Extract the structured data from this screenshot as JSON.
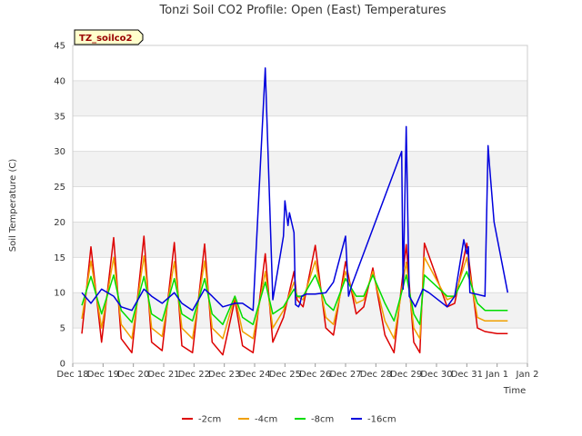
{
  "chart_data": {
    "type": "line",
    "title": "Tonzi Soil CO2 Profile: Open (East) Temperatures",
    "xlabel": "Time",
    "ylabel": "Soil Temperature (C)",
    "badge": "TZ_soilco2",
    "ylim": [
      0,
      45
    ],
    "yticks": [
      0,
      5,
      10,
      15,
      20,
      25,
      30,
      35,
      40,
      45
    ],
    "xlim": [
      "2023-12-18",
      "2024-01-02"
    ],
    "xticks": [
      "Dec 18",
      "Dec 19",
      "Dec 20",
      "Dec 21",
      "Dec 22",
      "Dec 23",
      "Dec 24",
      "Dec 25",
      "Dec 26",
      "Dec 27",
      "Dec 28",
      "Dec 29",
      "Dec 30",
      "Dec 31",
      "Jan 1",
      "Jan 2"
    ],
    "x_dates": [
      "2023-12-18",
      "2023-12-18 12:00",
      "2023-12-19",
      "2023-12-19 12:00",
      "2023-12-20",
      "2023-12-20 12:00",
      "2023-12-21",
      "2023-12-21 12:00",
      "2023-12-22",
      "2023-12-22 12:00",
      "2023-12-23",
      "2023-12-23 12:00",
      "2023-12-24",
      "2023-12-24 12:00",
      "2023-12-25",
      "2023-12-25 12:00",
      "2023-12-26",
      "2023-12-26 12:00",
      "2023-12-27",
      "2023-12-27 12:00",
      "2023-12-28",
      "2023-12-28 12:00",
      "2023-12-29",
      "2023-12-29 12:00",
      "2023-12-30",
      "2023-12-30 12:00",
      "2023-12-31",
      "2023-12-31 12:00",
      "2024-01-01",
      "2024-01-01 12:00"
    ],
    "grid": "horizontal",
    "grid_bands": true,
    "legend": "bottom",
    "series": [
      {
        "name": "-2cm",
        "color": "#dd0000",
        "x": [
          0.3,
          0.6,
          0.95,
          1.35,
          1.6,
          1.95,
          2.35,
          2.6,
          2.95,
          3.35,
          3.6,
          3.95,
          4.35,
          4.6,
          4.95,
          5.35,
          5.6,
          5.95,
          6.35,
          6.6,
          6.95,
          7.3,
          7.4,
          7.6,
          8.0,
          8.35,
          8.6,
          9.0,
          9.35,
          9.6,
          9.9,
          10.3,
          10.6,
          11.0,
          11.25,
          11.45,
          11.6,
          12.35,
          12.6,
          13.0,
          13.35,
          13.6,
          14.0,
          14.35
        ],
        "y": [
          4.2,
          16.5,
          3.0,
          17.8,
          3.5,
          1.5,
          18.0,
          3.0,
          1.8,
          17.1,
          2.5,
          1.5,
          16.9,
          3.0,
          1.2,
          9.0,
          2.5,
          1.5,
          15.5,
          3.0,
          6.5,
          13.0,
          9.0,
          8.0,
          16.7,
          5.0,
          4.0,
          14.4,
          7.0,
          8.0,
          13.5,
          4.0,
          1.5,
          16.8,
          3.0,
          1.5,
          17.0,
          8.0,
          8.5,
          17.0,
          5.0,
          4.5,
          4.2,
          4.2
        ]
      },
      {
        "name": "-4cm",
        "color": "#f0a000",
        "x": [
          0.3,
          0.6,
          0.95,
          1.35,
          1.6,
          1.95,
          2.35,
          2.6,
          2.95,
          3.35,
          3.6,
          3.95,
          4.35,
          4.6,
          4.95,
          5.35,
          5.6,
          5.95,
          6.35,
          6.6,
          6.95,
          7.3,
          7.4,
          7.6,
          8.0,
          8.35,
          8.6,
          9.0,
          9.35,
          9.6,
          9.9,
          10.3,
          10.6,
          11.0,
          11.25,
          11.45,
          11.6,
          12.35,
          12.6,
          13.0,
          13.35,
          13.6,
          14.0,
          14.35
        ],
        "y": [
          6.3,
          14.5,
          5.0,
          15.0,
          5.5,
          3.5,
          15.2,
          5.0,
          3.8,
          14.4,
          5.0,
          3.5,
          14.5,
          5.0,
          3.5,
          9.5,
          4.5,
          3.5,
          13.0,
          5.0,
          7.5,
          11.5,
          9.5,
          9.0,
          14.5,
          6.5,
          5.5,
          13.0,
          8.5,
          9.0,
          13.0,
          6.0,
          3.5,
          14.3,
          5.0,
          3.5,
          15.0,
          9.0,
          9.5,
          15.0,
          6.5,
          6.0,
          6.0,
          6.0
        ]
      },
      {
        "name": "-8cm",
        "color": "#00dd00",
        "x": [
          0.3,
          0.6,
          0.95,
          1.35,
          1.6,
          1.95,
          2.35,
          2.6,
          2.95,
          3.35,
          3.6,
          3.95,
          4.35,
          4.6,
          4.95,
          5.35,
          5.6,
          5.95,
          6.35,
          6.6,
          6.95,
          7.3,
          7.4,
          7.6,
          8.0,
          8.35,
          8.6,
          9.0,
          9.35,
          9.6,
          9.9,
          10.3,
          10.6,
          11.0,
          11.25,
          11.45,
          11.6,
          12.35,
          12.6,
          13.0,
          13.35,
          13.6,
          14.0,
          14.35
        ],
        "y": [
          8.2,
          12.3,
          7.0,
          12.5,
          7.5,
          5.8,
          12.3,
          7.0,
          6.0,
          12.0,
          7.0,
          6.0,
          12.0,
          7.0,
          5.5,
          9.5,
          6.5,
          5.5,
          11.5,
          7.0,
          8.0,
          10.5,
          9.5,
          9.5,
          12.5,
          8.5,
          7.5,
          12.0,
          9.5,
          9.5,
          12.5,
          8.5,
          6.0,
          12.5,
          7.0,
          5.5,
          12.5,
          9.5,
          9.5,
          13.0,
          8.5,
          7.5,
          7.5,
          7.5
        ]
      },
      {
        "name": "-16cm",
        "color": "#0000dd",
        "x": [
          0.3,
          0.6,
          0.95,
          1.35,
          1.6,
          1.95,
          2.35,
          2.6,
          2.95,
          3.35,
          3.6,
          3.95,
          4.35,
          4.6,
          4.95,
          5.35,
          5.6,
          5.95,
          6.35,
          6.6,
          6.95,
          7.0,
          7.1,
          7.15,
          7.3,
          7.35,
          7.45,
          7.5,
          7.55,
          7.7,
          8.0,
          8.35,
          8.6,
          9.0,
          9.1,
          9.2,
          10.85,
          10.9,
          11.0,
          11.1,
          11.3,
          11.55,
          11.75,
          12.35,
          12.6,
          12.9,
          13.0,
          13.05,
          13.1,
          13.6,
          13.7,
          13.75,
          13.9,
          14.35
        ],
        "y": [
          10.0,
          8.5,
          10.5,
          9.5,
          8.0,
          7.5,
          10.5,
          9.5,
          8.5,
          10.0,
          8.5,
          7.5,
          10.5,
          9.5,
          8.0,
          8.5,
          8.5,
          7.5,
          41.8,
          9.0,
          18.0,
          23.0,
          19.5,
          21.3,
          18.5,
          8.3,
          8.0,
          8.5,
          9.5,
          9.8,
          9.8,
          10.0,
          11.5,
          18.0,
          9.5,
          11.0,
          30.0,
          10.5,
          33.5,
          9.5,
          8.0,
          10.5,
          10.0,
          8.0,
          9.5,
          17.5,
          15.5,
          16.5,
          10.0,
          9.5,
          30.8,
          28.0,
          20.0,
          10.0
        ]
      }
    ]
  }
}
